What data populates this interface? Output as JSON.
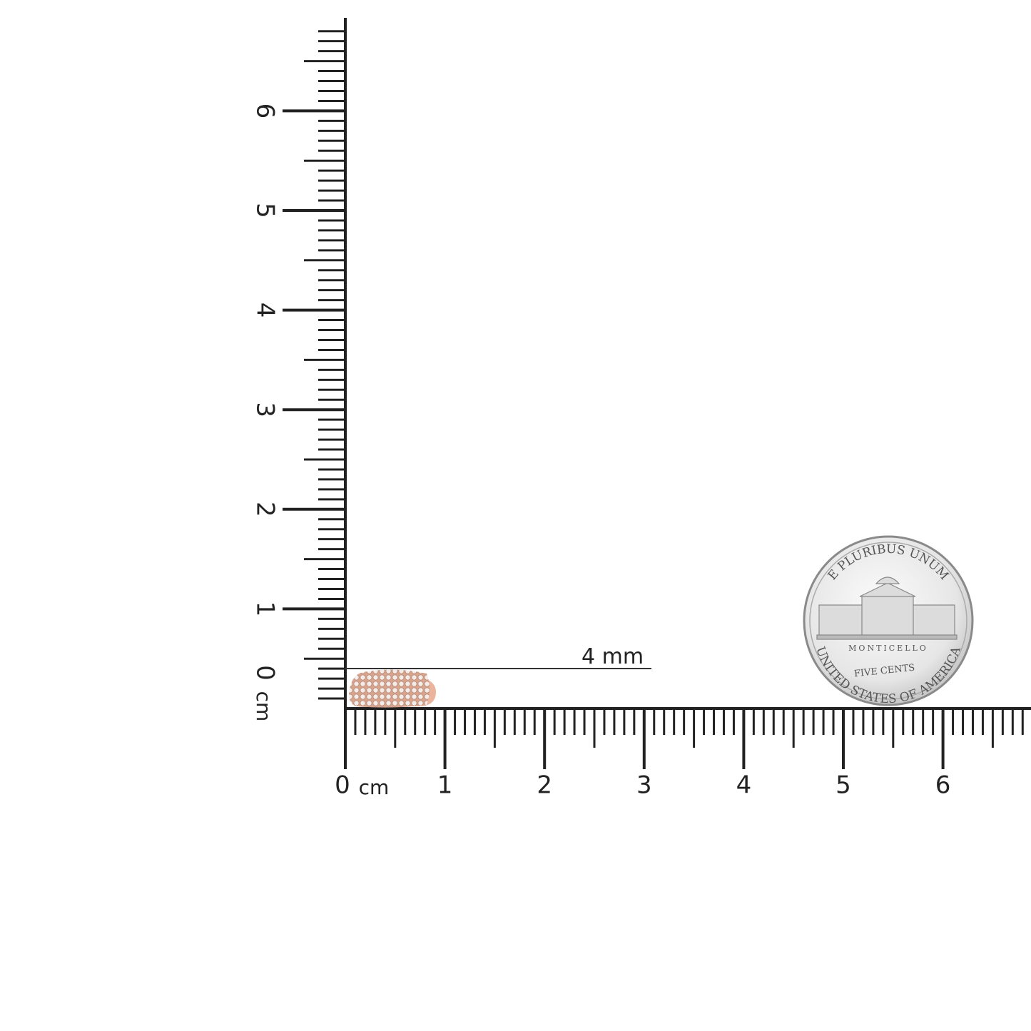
{
  "rulers": {
    "unit": "cm",
    "horizontal_labels": [
      "0",
      "1",
      "2",
      "3",
      "4",
      "5",
      "6"
    ],
    "vertical_labels": [
      "0",
      "1",
      "2",
      "3",
      "4",
      "5",
      "6"
    ],
    "color": "#222222"
  },
  "product": {
    "name": "pave diamond ring",
    "metal_color": "#e9b49a",
    "dimension_label": "4 mm"
  },
  "coin": {
    "top_text": "E PLURIBUS UNUM",
    "building": "MONTICELLO",
    "value": "FIVE CENTS",
    "bottom_text": "UNITED STATES OF AMERICA"
  }
}
